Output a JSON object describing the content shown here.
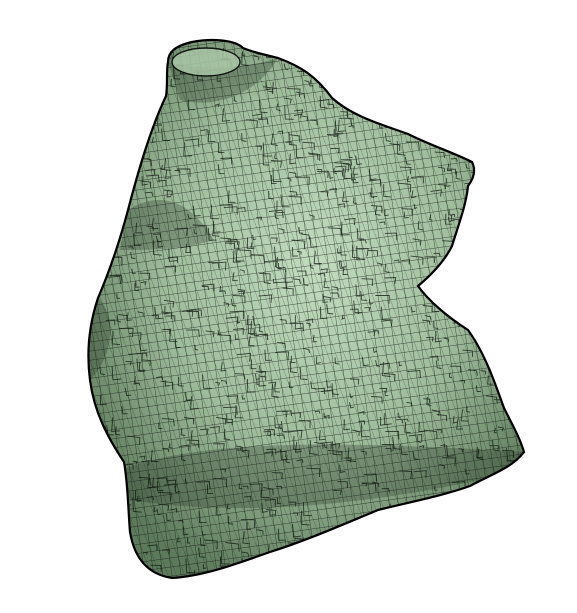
{
  "scene": {
    "background_color": "#ffffff",
    "subject": "mesh-surface",
    "mesh_fill_light": "#c2dcc0",
    "mesh_fill_mid": "#9fbc9c",
    "mesh_fill_dark": "#5e7a5c",
    "wire_color": "#0c140c",
    "outline_color": "#000000"
  }
}
